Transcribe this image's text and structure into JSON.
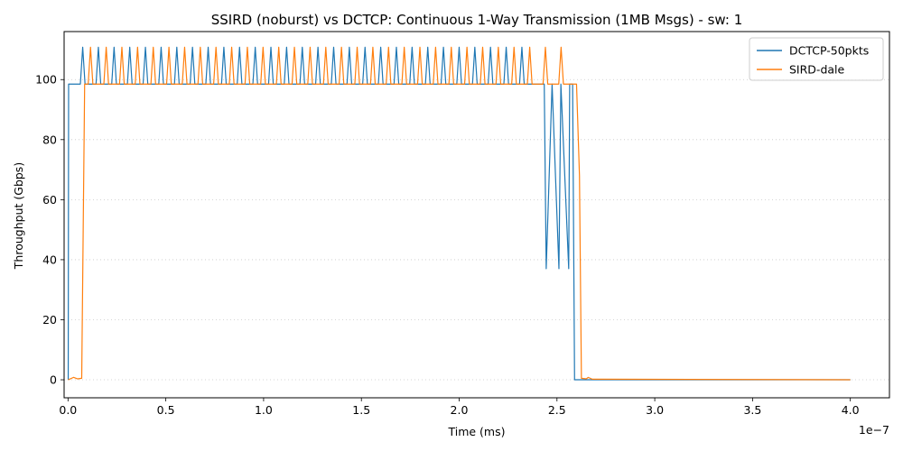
{
  "chart_data": {
    "type": "line",
    "title": "SSIRD (noburst) vs DCTCP: Continuous 1-Way Transmission (1MB Msgs) - sw: 1",
    "xlabel": "Time (ms)",
    "ylabel": "Throughput (Gbps)",
    "x_offset_label": "1e−7",
    "xlim": [
      -2e-09,
      4.2e-07
    ],
    "ylim": [
      -6,
      116
    ],
    "x_ticks": [
      0,
      5e-08,
      1e-07,
      1.5e-07,
      2e-07,
      2.5e-07,
      3e-07,
      3.5e-07,
      4e-07
    ],
    "x_tick_labels": [
      "0.0",
      "0.5",
      "1.0",
      "1.5",
      "2.0",
      "2.5",
      "3.0",
      "3.5",
      "4.0"
    ],
    "y_ticks": [
      0,
      20,
      40,
      60,
      80,
      100
    ],
    "y_tick_labels": [
      "0",
      "20",
      "40",
      "60",
      "80",
      "100"
    ],
    "grid": "horizontal-dotted",
    "legend_position": "top-right",
    "series": [
      {
        "name": "DCTCP-50pkts",
        "color": "#1f77b4",
        "pattern": {
          "type": "sawtooth",
          "start": 1e-10,
          "ramp_end": 3e-10,
          "base": 98.5,
          "peak": 110.8,
          "first_peak": 7.5e-09,
          "period": 8.02e-09,
          "last_peak": 2.4e-07,
          "dips": [
            [
              2.435e-07,
              98.5
            ],
            [
              2.445e-07,
              37
            ],
            [
              2.475e-07,
              98.5
            ],
            [
              2.51e-07,
              37
            ],
            [
              2.52e-07,
              98.5
            ],
            [
              2.56e-07,
              37
            ],
            [
              2.565e-07,
              98.5
            ],
            [
              2.58e-07,
              98.5
            ],
            [
              2.59e-07,
              0
            ]
          ],
          "end": 4e-07
        }
      },
      {
        "name": "SIRD-dale",
        "color": "#ff7f0e",
        "pattern": {
          "type": "sawtooth",
          "start": 1e-10,
          "ramp_start": 7e-09,
          "ramp_end": 8.5e-09,
          "base": 98.5,
          "peak": 110.8,
          "first_peak": 1.15e-08,
          "period": 8.02e-09,
          "last_peak": 2.55e-07,
          "tail": [
            [
              2.6e-07,
              98.5
            ],
            [
              2.615e-07,
              68
            ],
            [
              2.625e-07,
              0.5
            ],
            [
              2.65e-07,
              0.3
            ],
            [
              2.66e-07,
              0.8
            ],
            [
              2.68e-07,
              0.2
            ]
          ],
          "end": 4e-07
        }
      }
    ]
  }
}
